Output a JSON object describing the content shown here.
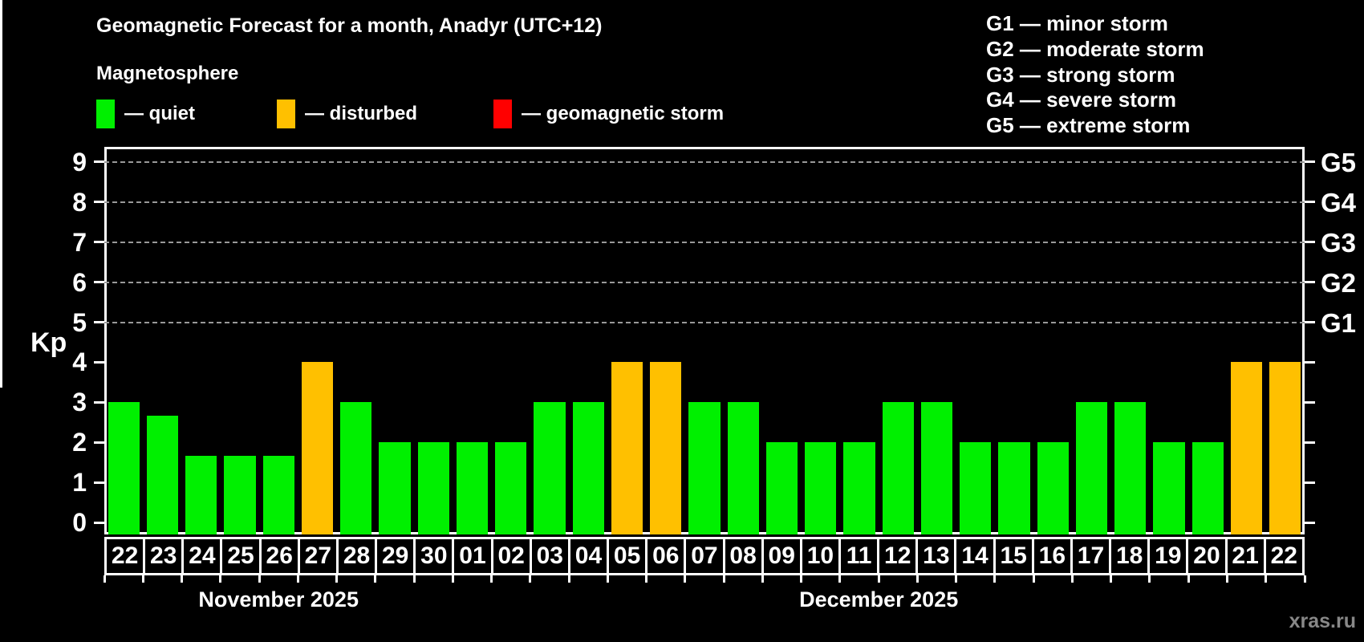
{
  "title": "Geomagnetic Forecast for a month, Anadyr (UTC+12)",
  "subtitle": "Magnetosphere",
  "legend": {
    "items": [
      {
        "key": "quiet",
        "label": "— quiet",
        "color": "#00f000"
      },
      {
        "key": "disturbed",
        "label": "— disturbed",
        "color": "#ffc000"
      },
      {
        "key": "storm",
        "label": "— geomagnetic storm",
        "color": "#ff0000"
      }
    ]
  },
  "storm_scale_legend": [
    "G1 — minor storm",
    "G2 — moderate storm",
    "G3 — strong storm",
    "G4 — severe storm",
    "G5 — extreme storm"
  ],
  "watermark": "xras.ru",
  "chart_data": {
    "type": "bar",
    "ylabel": "Kp",
    "ylim": [
      -0.32,
      9.38
    ],
    "y_ticks": [
      0,
      1,
      2,
      3,
      4,
      5,
      6,
      7,
      8,
      9
    ],
    "gridlines_at": [
      5,
      6,
      7,
      8,
      9
    ],
    "grid": true,
    "right_axis_labels": [
      {
        "kp": 5,
        "label": "G1"
      },
      {
        "kp": 6,
        "label": "G2"
      },
      {
        "kp": 7,
        "label": "G3"
      },
      {
        "kp": 8,
        "label": "G4"
      },
      {
        "kp": 9,
        "label": "G5"
      }
    ],
    "state_colors": {
      "quiet": "#00f000",
      "disturbed": "#ffc000",
      "storm": "#ff0000"
    },
    "months": [
      {
        "label": "November 2025",
        "days": [
          {
            "day": "22",
            "kp": 3.0,
            "state": "quiet"
          },
          {
            "day": "23",
            "kp": 2.67,
            "state": "quiet"
          },
          {
            "day": "24",
            "kp": 1.67,
            "state": "quiet"
          },
          {
            "day": "25",
            "kp": 1.67,
            "state": "quiet"
          },
          {
            "day": "26",
            "kp": 1.67,
            "state": "quiet"
          },
          {
            "day": "27",
            "kp": 4.0,
            "state": "disturbed"
          },
          {
            "day": "28",
            "kp": 3.0,
            "state": "quiet"
          },
          {
            "day": "29",
            "kp": 2.0,
            "state": "quiet"
          },
          {
            "day": "30",
            "kp": 2.0,
            "state": "quiet"
          }
        ]
      },
      {
        "label": "December 2025",
        "days": [
          {
            "day": "01",
            "kp": 2.0,
            "state": "quiet"
          },
          {
            "day": "02",
            "kp": 2.0,
            "state": "quiet"
          },
          {
            "day": "03",
            "kp": 3.0,
            "state": "quiet"
          },
          {
            "day": "04",
            "kp": 3.0,
            "state": "quiet"
          },
          {
            "day": "05",
            "kp": 4.0,
            "state": "disturbed"
          },
          {
            "day": "06",
            "kp": 4.0,
            "state": "disturbed"
          },
          {
            "day": "07",
            "kp": 3.0,
            "state": "quiet"
          },
          {
            "day": "08",
            "kp": 3.0,
            "state": "quiet"
          },
          {
            "day": "09",
            "kp": 2.0,
            "state": "quiet"
          },
          {
            "day": "10",
            "kp": 2.0,
            "state": "quiet"
          },
          {
            "day": "11",
            "kp": 2.0,
            "state": "quiet"
          },
          {
            "day": "12",
            "kp": 3.0,
            "state": "quiet"
          },
          {
            "day": "13",
            "kp": 3.0,
            "state": "quiet"
          },
          {
            "day": "14",
            "kp": 2.0,
            "state": "quiet"
          },
          {
            "day": "15",
            "kp": 2.0,
            "state": "quiet"
          },
          {
            "day": "16",
            "kp": 2.0,
            "state": "quiet"
          },
          {
            "day": "17",
            "kp": 3.0,
            "state": "quiet"
          },
          {
            "day": "18",
            "kp": 3.0,
            "state": "quiet"
          },
          {
            "day": "19",
            "kp": 2.0,
            "state": "quiet"
          },
          {
            "day": "20",
            "kp": 2.0,
            "state": "quiet"
          },
          {
            "day": "21",
            "kp": 4.0,
            "state": "disturbed"
          },
          {
            "day": "22",
            "kp": 4.0,
            "state": "disturbed"
          }
        ]
      }
    ]
  }
}
